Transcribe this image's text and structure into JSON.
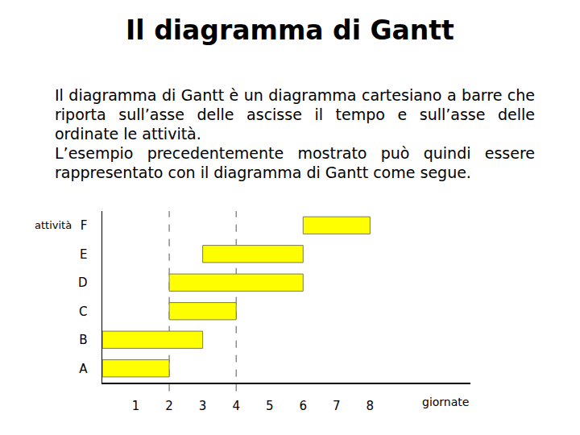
{
  "title": "Il diagramma di Gantt",
  "paragraphs": [
    "Il diagramma di Gantt è un diagramma cartesiano a barre che riporta sull’asse delle ascisse il tempo e sull’asse delle ordinate le attività.",
    "L’esempio precedentemente mostrato può quindi essere rappresentato con il diagramma di Gantt come segue."
  ],
  "chart_data": {
    "type": "gantt",
    "orientation": "horizontal",
    "categories": [
      "A",
      "B",
      "C",
      "D",
      "E",
      "F"
    ],
    "start": [
      0,
      0,
      2,
      2,
      3,
      6
    ],
    "duration": [
      2,
      3,
      2,
      4,
      3,
      2
    ],
    "color": "#ffff00",
    "xlim": [
      0,
      11
    ],
    "xticks": [
      1,
      2,
      3,
      4,
      5,
      6,
      7,
      8
    ],
    "xlabel": "giornate",
    "ylabel": "attività",
    "dashed_lines_x": [
      2,
      4
    ],
    "grid": false
  }
}
